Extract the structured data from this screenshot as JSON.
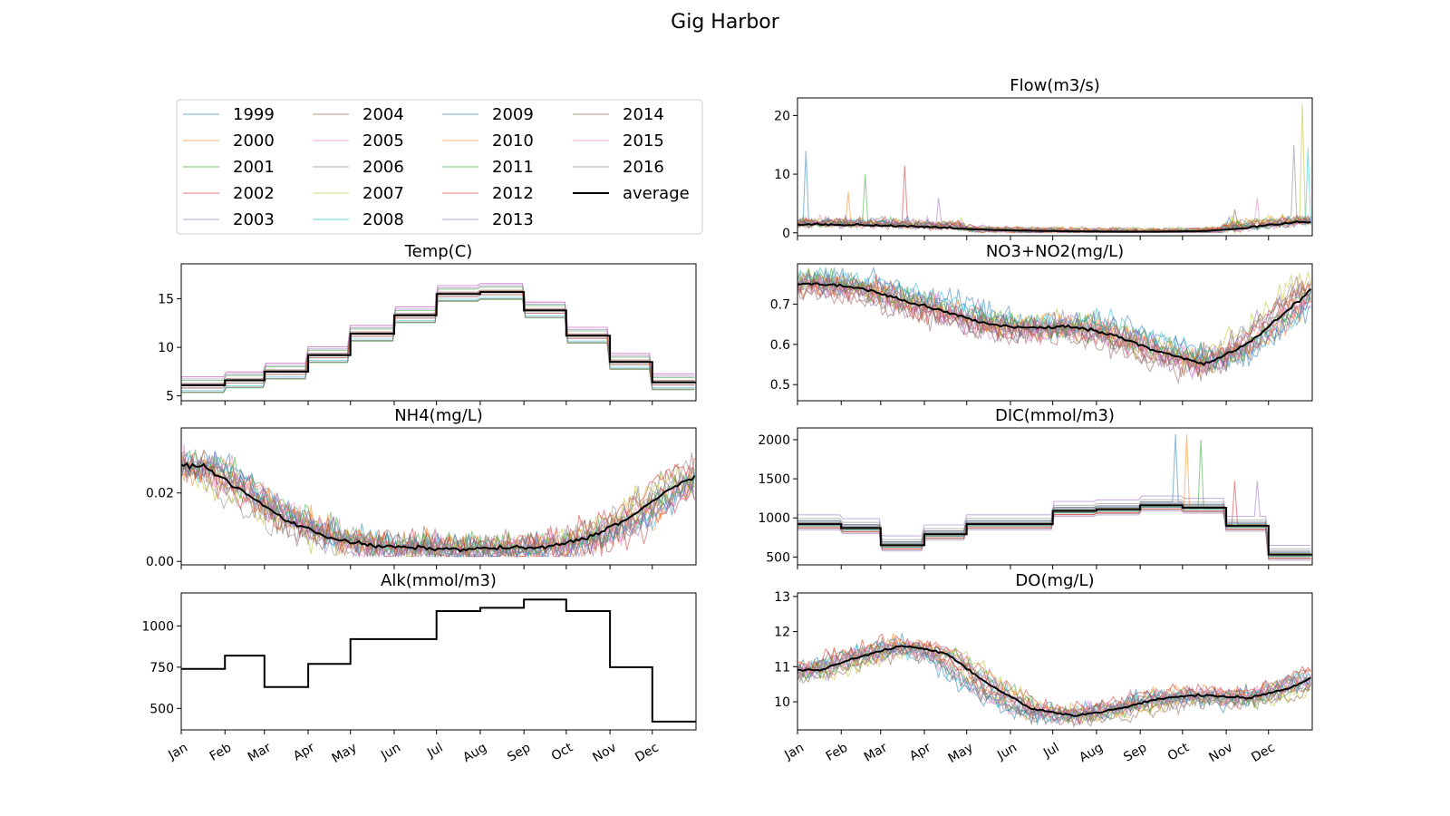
{
  "figure": {
    "title": "Gig Harbor"
  },
  "colors": {
    "year_palette": [
      "#1f77b4",
      "#ff7f0e",
      "#2ca02c",
      "#d62728",
      "#9467bd",
      "#8c564b",
      "#e377c2",
      "#7f7f7f",
      "#bcbd22",
      "#17becf"
    ],
    "average": "#000000",
    "year_alpha": 0.5
  },
  "months": [
    "Jan",
    "Feb",
    "Mar",
    "Apr",
    "May",
    "Jun",
    "Jul",
    "Aug",
    "Sep",
    "Oct",
    "Nov",
    "Dec"
  ],
  "legend": {
    "entries": [
      "1999",
      "2000",
      "2001",
      "2002",
      "2003",
      "2004",
      "2005",
      "2006",
      "2007",
      "2008",
      "2009",
      "2010",
      "2011",
      "2012",
      "2013",
      "2014",
      "2015",
      "2016",
      "average"
    ],
    "columns": 4,
    "placement": "top-left panel"
  },
  "chart_data": [
    {
      "id": "flow",
      "type": "line",
      "title": "Flow(m3/s)",
      "column": "right",
      "row": 0,
      "ylim": [
        -0.5,
        23
      ],
      "yticks": [
        0,
        10,
        20
      ],
      "average_monthly": [
        1.3,
        1.2,
        1.0,
        0.8,
        0.5,
        0.35,
        0.25,
        0.2,
        0.2,
        0.3,
        0.8,
        1.6
      ],
      "year_spread": 0.9,
      "spikes": [
        {
          "day": 5,
          "value": 14
        },
        {
          "day": 35,
          "value": 7
        },
        {
          "day": 48,
          "value": 10
        },
        {
          "day": 75,
          "value": 11.5
        },
        {
          "day": 100,
          "value": 6
        },
        {
          "day": 310,
          "value": 4
        },
        {
          "day": 325,
          "value": 6
        },
        {
          "day": 352,
          "value": 15
        },
        {
          "day": 358,
          "value": 22
        },
        {
          "day": 362,
          "value": 14.5
        }
      ]
    },
    {
      "id": "temp",
      "type": "line",
      "title": "Temp(C)",
      "column": "left",
      "row": 1,
      "ylim": [
        4.5,
        18.6
      ],
      "yticks": [
        5,
        10,
        15
      ],
      "step": true,
      "average_monthly": [
        6.1,
        6.6,
        7.5,
        9.2,
        11.4,
        13.3,
        15.5,
        15.7,
        13.8,
        11.2,
        8.5,
        6.4
      ],
      "year_spread": 1.3
    },
    {
      "id": "no3",
      "type": "line",
      "title": "NO3+NO2(mg/L)",
      "column": "right",
      "row": 1,
      "ylim": [
        0.46,
        0.8
      ],
      "yticks": [
        0.5,
        0.6,
        0.7
      ],
      "average_monthly": [
        0.75,
        0.74,
        0.71,
        0.68,
        0.65,
        0.64,
        0.645,
        0.62,
        0.58,
        0.55,
        0.6,
        0.69
      ],
      "year_end_value": 0.74,
      "year_spread": 0.06,
      "clip_high": 0.79
    },
    {
      "id": "nh4",
      "type": "line",
      "title": "NH4(mg/L)",
      "column": "left",
      "row": 2,
      "ylim": [
        -0.001,
        0.039
      ],
      "yticks": [
        0.0,
        0.02
      ],
      "ytick_labels": [
        "0.00",
        "0.02"
      ],
      "average_monthly": [
        0.028,
        0.02,
        0.012,
        0.007,
        0.0045,
        0.004,
        0.0035,
        0.004,
        0.004,
        0.007,
        0.013,
        0.022
      ],
      "year_end_value": 0.025,
      "year_spread": 0.008,
      "clip_high": 0.038
    },
    {
      "id": "dic",
      "type": "line",
      "title": "DIC(mmol/m3)",
      "column": "right",
      "row": 2,
      "ylim": [
        400,
        2150
      ],
      "yticks": [
        500,
        1000,
        1500,
        2000
      ],
      "step": true,
      "average_monthly": [
        920,
        870,
        650,
        790,
        920,
        920,
        1090,
        1110,
        1160,
        1130,
        900,
        530
      ],
      "year_spread": 120,
      "spikes": [
        {
          "day": 268,
          "value": 2070
        },
        {
          "day": 275,
          "value": 2070
        },
        {
          "day": 285,
          "value": 2000
        },
        {
          "day": 310,
          "value": 1470
        },
        {
          "day": 325,
          "value": 1470
        }
      ]
    },
    {
      "id": "alk",
      "type": "line",
      "title": "Alk(mmol/m3)",
      "column": "left",
      "row": 3,
      "ylim": [
        370,
        1200
      ],
      "yticks": [
        500,
        750,
        1000
      ],
      "step": true,
      "average_only": true,
      "average_monthly": [
        740,
        820,
        630,
        770,
        920,
        920,
        1090,
        1110,
        1160,
        1090,
        750,
        420
      ]
    },
    {
      "id": "do",
      "type": "line",
      "title": "DO(mg/L)",
      "column": "right",
      "row": 3,
      "ylim": [
        9.2,
        13.1
      ],
      "yticks": [
        10,
        11,
        12,
        13
      ],
      "average_monthly": [
        10.9,
        11.3,
        11.6,
        11.4,
        10.5,
        9.8,
        9.6,
        9.8,
        10.1,
        10.2,
        10.1,
        10.4
      ],
      "year_end_value": 10.7,
      "year_spread": 0.45
    }
  ]
}
